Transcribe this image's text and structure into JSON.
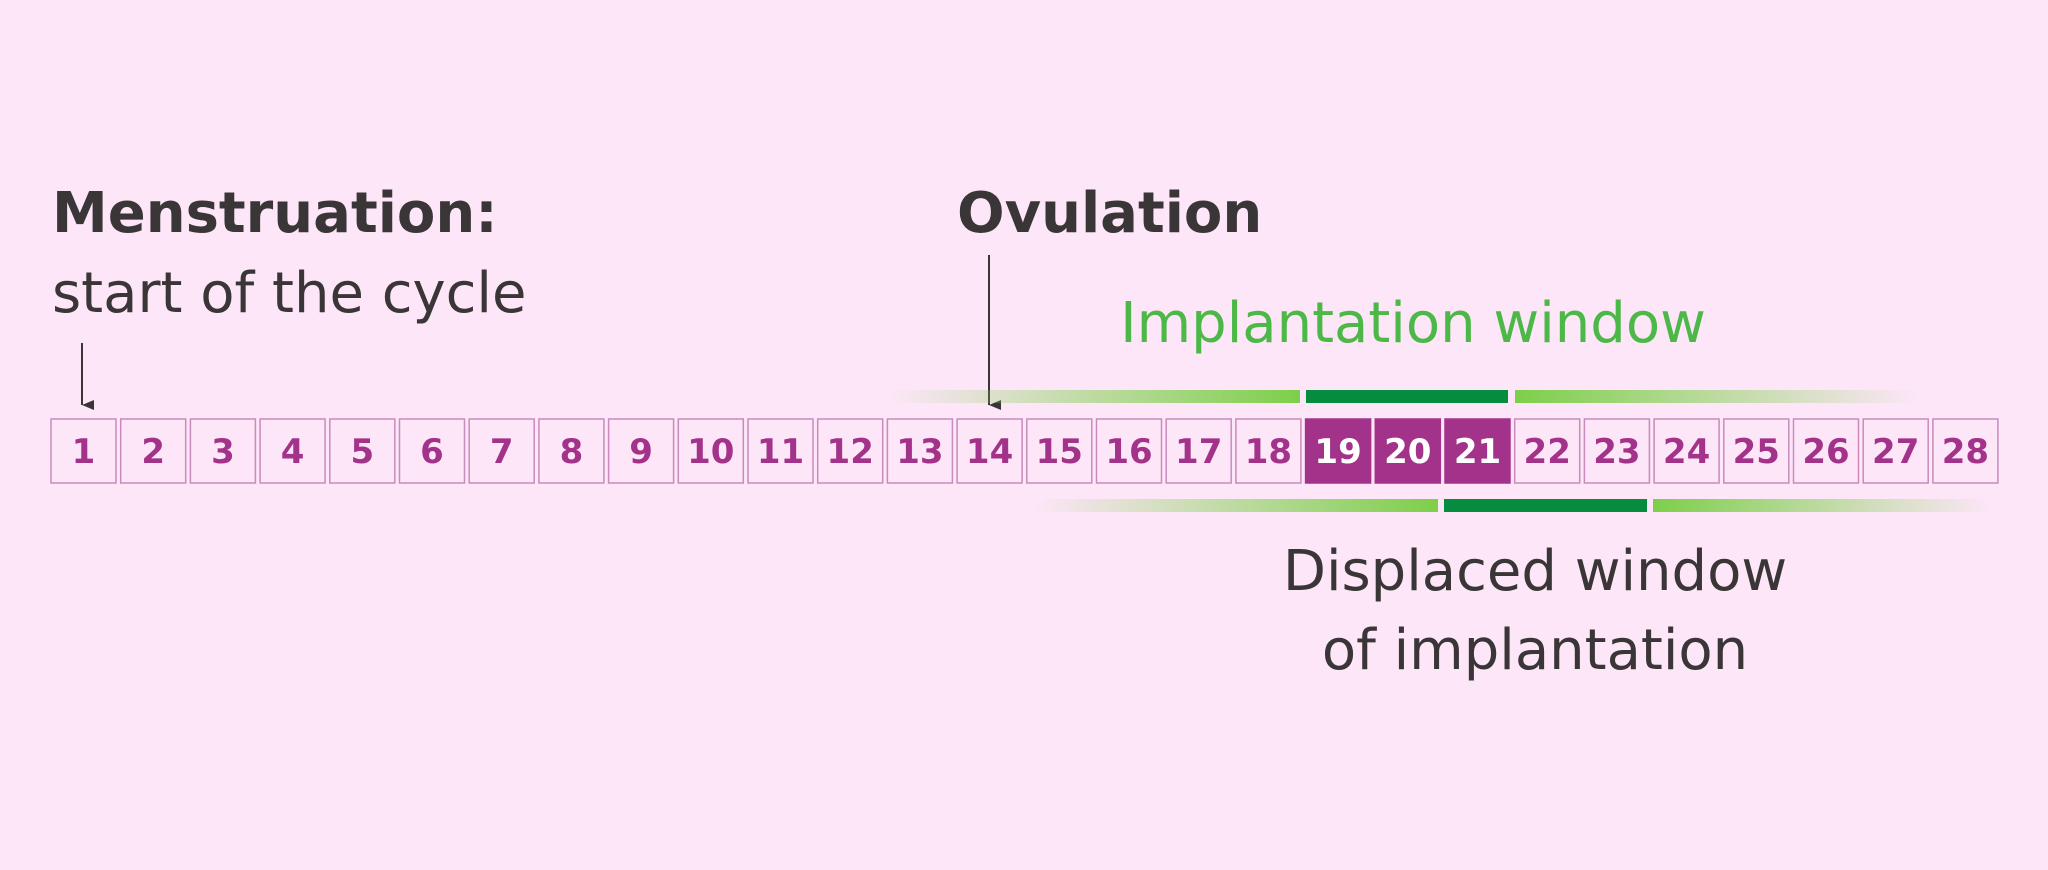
{
  "labels": {
    "menstruation_title": "Menstruation:",
    "menstruation_text": "start of the cycle",
    "ovulation": "Ovulation",
    "implantation_window": "Implantation window",
    "displaced_line1": "Displaced window",
    "displaced_line2": "of implantation"
  },
  "days": [
    {
      "day": 1
    },
    {
      "day": 2
    },
    {
      "day": 3
    },
    {
      "day": 4
    },
    {
      "day": 5
    },
    {
      "day": 6
    },
    {
      "day": 7
    },
    {
      "day": 8
    },
    {
      "day": 9
    },
    {
      "day": 10
    },
    {
      "day": 11
    },
    {
      "day": 12
    },
    {
      "day": 13
    },
    {
      "day": 14
    },
    {
      "day": 15
    },
    {
      "day": 16
    },
    {
      "day": 17
    },
    {
      "day": 18
    },
    {
      "day": 19,
      "highlighted": true
    },
    {
      "day": 20,
      "highlighted": true
    },
    {
      "day": 21,
      "highlighted": true
    },
    {
      "day": 22
    },
    {
      "day": 23
    },
    {
      "day": 24
    },
    {
      "day": 25
    },
    {
      "day": 26
    },
    {
      "day": 27
    },
    {
      "day": 28
    }
  ]
}
